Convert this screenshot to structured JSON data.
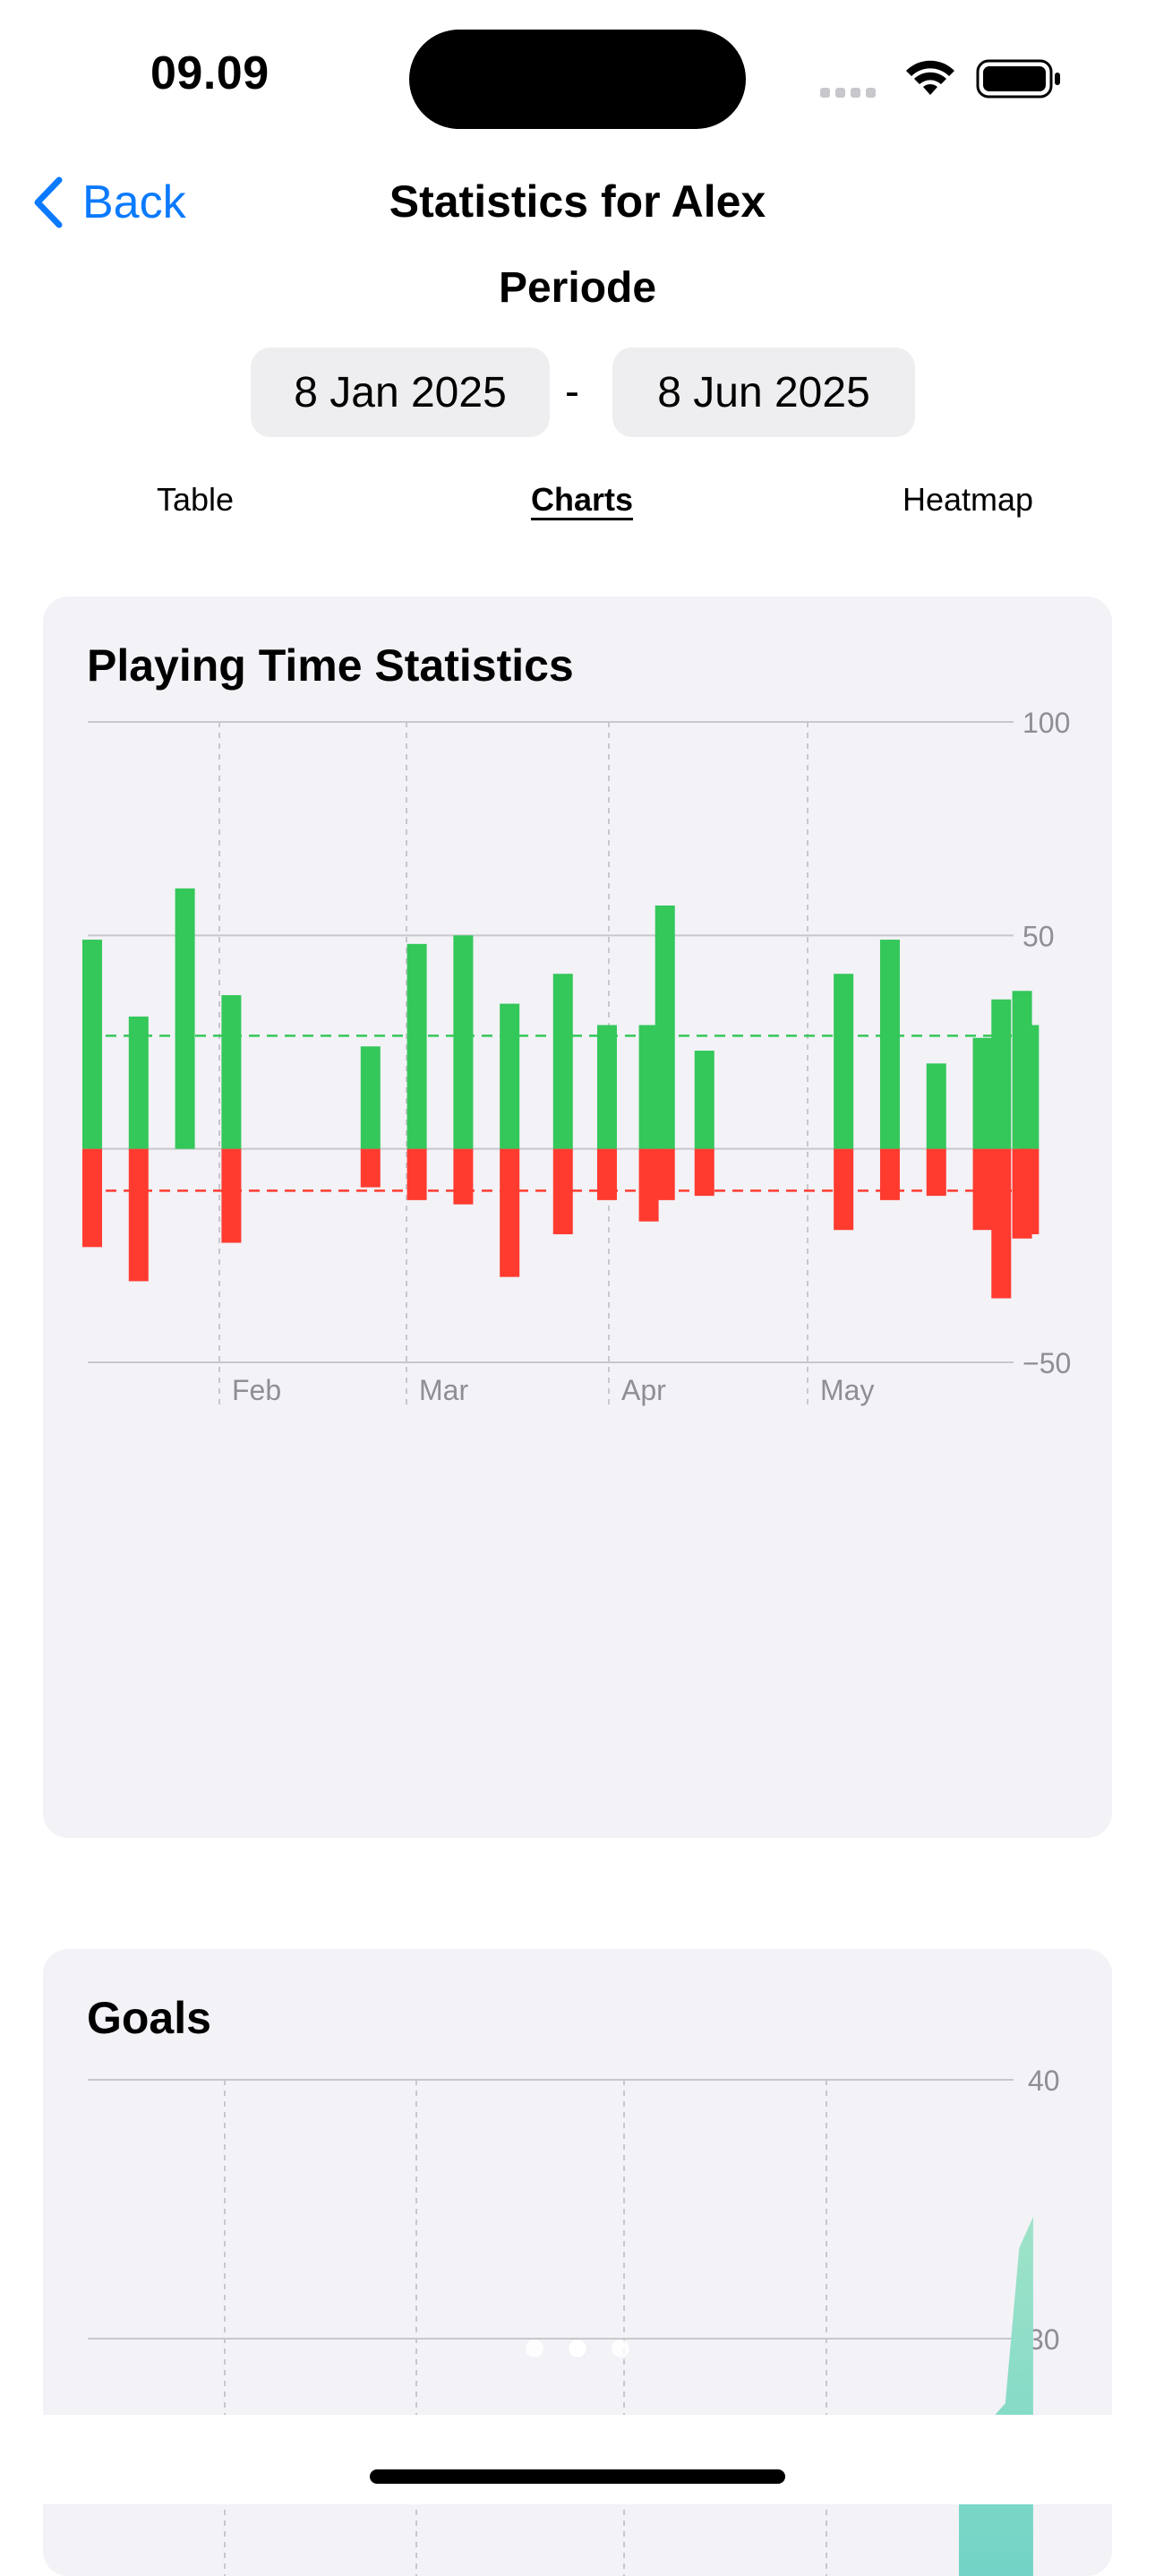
{
  "status_bar": {
    "time": "09.09"
  },
  "nav": {
    "back_label": "Back",
    "title": "Statistics for Alex"
  },
  "period": {
    "label": "Periode",
    "start": "8 Jan 2025",
    "separator": "-",
    "end": "8 Jun 2025"
  },
  "tabs": [
    {
      "label": "Table",
      "active": false
    },
    {
      "label": "Charts",
      "active": true
    },
    {
      "label": "Heatmap",
      "active": false
    }
  ],
  "colors": {
    "accent": "#0a7aff",
    "positive": "#34c759",
    "negative": "#ff3b30",
    "goals": "#6fd3c6",
    "card": "#f2f2f7"
  },
  "playing_chart": {
    "title": "Playing Time Statistics",
    "chart_data": {
      "type": "bar",
      "ylim": [
        -50,
        100
      ],
      "yticks": [
        100,
        50,
        0,
        -50
      ],
      "xticks": [
        "Feb",
        "Mar",
        "Apr",
        "May"
      ],
      "avg_positive": 26.5,
      "avg_negative": -9.8,
      "series": [
        {
          "name": "",
          "values": [
            {
              "x": 0.0,
              "y": 49
            },
            {
              "x": 1.0,
              "y": 31
            },
            {
              "x": 2.0,
              "y": 61
            },
            {
              "x": 3.0,
              "y": 36
            },
            {
              "x": 6.0,
              "y": 24
            },
            {
              "x": 7.0,
              "y": 48
            },
            {
              "x": 8.0,
              "y": 50
            },
            {
              "x": 9.0,
              "y": 34
            },
            {
              "x": 10.15,
              "y": 41
            },
            {
              "x": 11.1,
              "y": 29
            },
            {
              "x": 12.0,
              "y": 29
            },
            {
              "x": 12.35,
              "y": 57
            },
            {
              "x": 13.2,
              "y": 23
            },
            {
              "x": 16.2,
              "y": 41
            },
            {
              "x": 17.2,
              "y": 49
            },
            {
              "x": 18.2,
              "y": 20
            },
            {
              "x": 19.2,
              "y": 26
            },
            {
              "x": 19.6,
              "y": 35
            },
            {
              "x": 20.05,
              "y": 37
            },
            {
              "x": 20.2,
              "y": 29
            }
          ]
        },
        {
          "name": "",
          "values": [
            {
              "x": 0.0,
              "y": -23
            },
            {
              "x": 1.0,
              "y": -31
            },
            {
              "x": 3.0,
              "y": -22
            },
            {
              "x": 6.0,
              "y": -9
            },
            {
              "x": 7.0,
              "y": -12
            },
            {
              "x": 8.0,
              "y": -13
            },
            {
              "x": 9.0,
              "y": -30
            },
            {
              "x": 10.15,
              "y": -20
            },
            {
              "x": 11.1,
              "y": -12
            },
            {
              "x": 12.0,
              "y": -17
            },
            {
              "x": 12.35,
              "y": -12
            },
            {
              "x": 13.2,
              "y": -11
            },
            {
              "x": 16.2,
              "y": -19
            },
            {
              "x": 17.2,
              "y": -12
            },
            {
              "x": 18.2,
              "y": -11
            },
            {
              "x": 19.2,
              "y": -19
            },
            {
              "x": 19.6,
              "y": -35
            },
            {
              "x": 20.05,
              "y": -21
            },
            {
              "x": 20.2,
              "y": -20
            }
          ]
        }
      ]
    }
  },
  "goals_chart": {
    "title": "Goals",
    "chart_data": {
      "type": "area",
      "yticks": [
        40,
        30
      ],
      "points": [
        {
          "x": 18.9,
          "y": 25.5
        },
        {
          "x": 19.9,
          "y": 27.5
        },
        {
          "x": 20.2,
          "y": 33.5
        },
        {
          "x": 20.5,
          "y": 34.7
        }
      ]
    }
  }
}
